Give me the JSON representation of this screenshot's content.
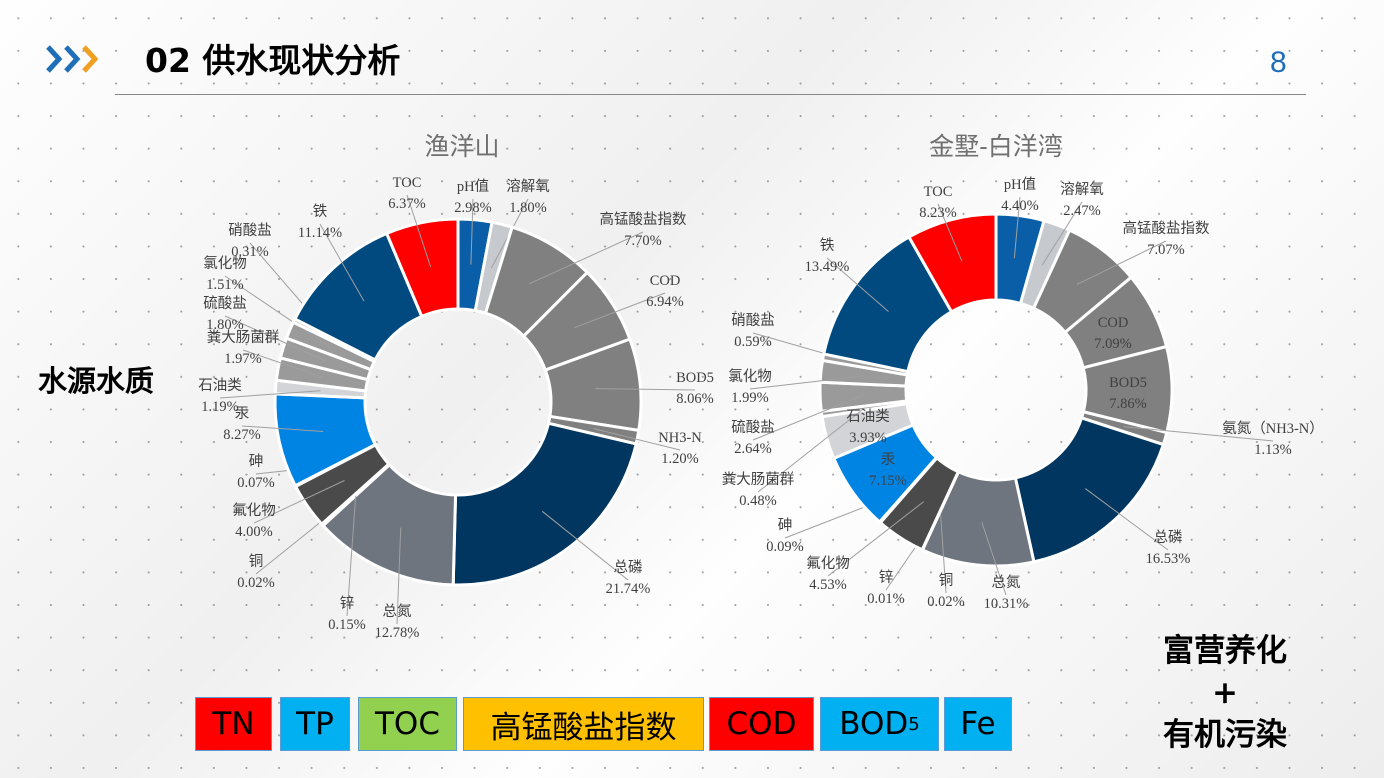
{
  "header": {
    "title": "02 供水现状分析",
    "page_number": "8",
    "icon": "triple-chevron-right-icon",
    "chevron_colors": [
      "#1f6fb8",
      "#1f6fb8",
      "#f0a020"
    ]
  },
  "side_label": "水源水质",
  "conclusion": {
    "line1": "富营养化",
    "line2": "+",
    "line3": "有机污染"
  },
  "legend": [
    {
      "label": "TN",
      "color": "#ff0000"
    },
    {
      "label": "TP",
      "color": "#00b0f0"
    },
    {
      "label": "TOC",
      "color": "#92d050"
    },
    {
      "label": "高锰酸盐指数",
      "color": "#ffc000"
    },
    {
      "label": "COD",
      "color": "#ff0000"
    },
    {
      "label": "BOD",
      "sub": "5",
      "color": "#00b0f0"
    },
    {
      "label": "Fe",
      "color": "#00b0f0"
    }
  ],
  "chart_data": [
    {
      "type": "pie",
      "donut": true,
      "title": "渔洋山",
      "categories": [
        "pH值",
        "溶解氧",
        "高锰酸盐指数",
        "COD",
        "BOD5",
        "NH3-N",
        "总磷",
        "总氮",
        "锌",
        "铜",
        "氟化物",
        "砷",
        "汞",
        "石油类",
        "粪大肠菌群",
        "硫酸盐",
        "氯化物",
        "硝酸盐",
        "铁",
        "TOC"
      ],
      "values": [
        2.98,
        1.8,
        7.7,
        6.94,
        8.06,
        1.2,
        21.74,
        12.78,
        0.15,
        0.02,
        4.0,
        0.07,
        8.27,
        1.19,
        1.97,
        1.8,
        1.51,
        0.31,
        11.14,
        6.37
      ],
      "labels": [
        "2.98%",
        "1.80%",
        "7.70%",
        "6.94%",
        "8.06%",
        "1.20%",
        "21.74%",
        "12.78%",
        "0.15%",
        "0.02%",
        "4.00%",
        "0.07%",
        "8.27%",
        "1.19%",
        "1.97%",
        "1.80%",
        "1.51%",
        "0.31%",
        "11.14%",
        "6.37%"
      ],
      "colors": [
        "#0a5ea8",
        "#c6c9cd",
        "#808080",
        "#808080",
        "#808080",
        "#808080",
        "#003660",
        "#6e757e",
        "#b0b0b0",
        "#b0b0b0",
        "#4a4a4a",
        "#0080e0",
        "#0084e4",
        "#d2d4d7",
        "#9a9a9a",
        "#9a9a9a",
        "#9a9a9a",
        "#9a9a9a",
        "#004a80",
        "#ff0000"
      ]
    },
    {
      "type": "pie",
      "donut": true,
      "title": "金墅-白洋湾",
      "categories": [
        "pH值",
        "溶解氧",
        "高锰酸盐指数",
        "COD",
        "BOD5",
        "氨氮（NH3-N）",
        "总磷",
        "总氮",
        "铜",
        "锌",
        "氟化物",
        "砷",
        "汞",
        "石油类",
        "粪大肠菌群",
        "硫酸盐",
        "氯化物",
        "硝酸盐",
        "铁",
        "TOC"
      ],
      "values": [
        4.4,
        2.47,
        7.07,
        7.09,
        7.86,
        1.13,
        16.53,
        10.31,
        0.02,
        0.01,
        4.53,
        0.09,
        7.15,
        3.93,
        0.48,
        2.64,
        1.99,
        0.59,
        13.49,
        8.23
      ],
      "labels": [
        "4.40%",
        "2.47%",
        "7.07%",
        "7.09%",
        "7.86%",
        "1.13%",
        "16.53%",
        "10.31%",
        "0.02%",
        "0.01%",
        "4.53%",
        "0.09%",
        "7.15%",
        "3.93%",
        "0.48%",
        "2.64%",
        "1.99%",
        "0.59%",
        "13.49%",
        "8.23%"
      ],
      "colors": [
        "#0a5ea8",
        "#c6c9cd",
        "#808080",
        "#808080",
        "#808080",
        "#808080",
        "#003660",
        "#6e757e",
        "#b0b0b0",
        "#b0b0b0",
        "#4a4a4a",
        "#0080e0",
        "#0084e4",
        "#d2d4d7",
        "#9a9a9a",
        "#9a9a9a",
        "#9a9a9a",
        "#9a9a9a",
        "#004a80",
        "#ff0000"
      ]
    }
  ]
}
